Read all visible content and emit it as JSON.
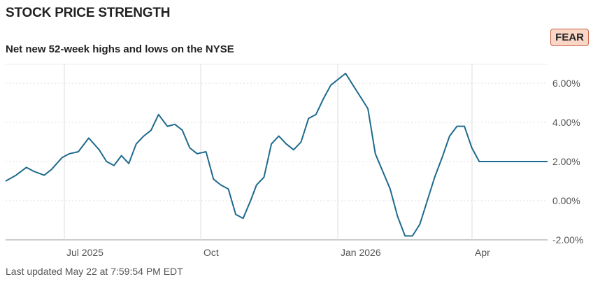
{
  "header": {
    "title": "STOCK PRICE STRENGTH",
    "subtitle": "Net new 52-week highs and lows on the NYSE",
    "sentiment_badge": "FEAR"
  },
  "footer": {
    "last_updated": "Last updated May 22 at 7:59:54 PM EDT"
  },
  "colors": {
    "line": "#1e6a8d",
    "badge_bg": "#f9d6c6",
    "badge_border": "#c9614a"
  },
  "chart_data": {
    "type": "line",
    "title": "Net new 52-week highs and lows on the NYSE",
    "xlabel": "",
    "ylabel": "",
    "x_ticks": [
      "Jul 2025",
      "Oct",
      "Jan 2026",
      "Apr"
    ],
    "y_ticks": [
      "6.00%",
      "4.00%",
      "2.00%",
      "0.00%",
      "-2.00%"
    ],
    "y_tick_values": [
      6,
      4,
      2,
      0,
      -2
    ],
    "ylim": [
      -2,
      6.8
    ],
    "xlim": [
      "2025-05-22",
      "2026-05-22"
    ],
    "grid": true,
    "legend": "none",
    "series": [
      {
        "x": [
          "2025-05-22",
          "2025-05-29",
          "2025-06-05",
          "2025-06-10",
          "2025-06-17",
          "2025-06-22",
          "2025-06-29",
          "2025-07-04",
          "2025-07-10",
          "2025-07-17",
          "2025-07-24",
          "2025-07-29",
          "2025-08-03",
          "2025-08-08",
          "2025-08-13",
          "2025-08-18",
          "2025-08-23",
          "2025-08-28",
          "2025-09-02",
          "2025-09-08",
          "2025-09-13",
          "2025-09-18",
          "2025-09-23",
          "2025-09-28",
          "2025-10-04",
          "2025-10-09",
          "2025-10-14",
          "2025-10-19",
          "2025-10-24",
          "2025-10-29",
          "2025-11-03",
          "2025-11-07",
          "2025-11-12",
          "2025-11-17",
          "2025-11-22",
          "2025-11-27",
          "2025-12-02",
          "2025-12-07",
          "2025-12-12",
          "2025-12-17",
          "2025-12-22",
          "2025-12-27",
          "2026-01-01",
          "2026-01-06",
          "2026-01-11",
          "2026-01-16",
          "2026-01-21",
          "2026-01-26",
          "2026-01-31",
          "2026-02-05",
          "2026-02-10",
          "2026-02-15",
          "2026-02-20",
          "2026-02-25",
          "2026-03-02",
          "2026-03-07",
          "2026-03-12",
          "2026-03-17",
          "2026-03-22",
          "2026-03-27",
          "2026-04-01",
          "2026-04-06",
          "2026-04-11",
          "2026-04-16",
          "2026-04-21",
          "2026-04-26",
          "2026-05-01",
          "2026-05-06",
          "2026-05-11",
          "2026-05-16",
          "2026-05-22"
        ],
        "y": [
          1.0,
          1.3,
          1.7,
          1.5,
          1.3,
          1.6,
          2.2,
          2.4,
          2.5,
          3.2,
          2.6,
          2.0,
          1.8,
          2.3,
          1.9,
          2.9,
          3.3,
          3.6,
          4.4,
          3.8,
          3.9,
          3.6,
          2.7,
          2.4,
          2.5,
          1.1,
          0.8,
          0.6,
          -0.7,
          -0.9,
          0.0,
          0.8,
          1.2,
          2.9,
          3.3,
          2.9,
          2.6,
          3.0,
          4.2,
          4.4,
          5.2,
          5.9,
          6.2,
          6.5,
          5.9,
          5.3,
          4.7,
          2.4,
          1.5,
          0.6,
          -0.8,
          -1.8,
          -1.8,
          -1.2,
          0.0,
          1.2,
          2.2,
          3.3,
          3.8,
          3.8,
          2.7,
          2.0,
          2.0,
          2.0,
          2.0,
          2.0,
          2.0,
          2.0,
          2.0,
          2.0,
          2.0
        ]
      }
    ]
  }
}
